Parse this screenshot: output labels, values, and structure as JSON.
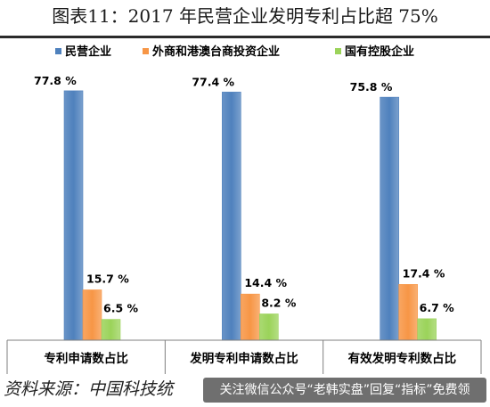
{
  "title": "图表11：2017 年民营企业发明专利占比超 75%",
  "source": "资料来源：中国科技统",
  "watermark": "关注微信公众号“老韩实盘”回复“指标”免费领",
  "colors": {
    "series": [
      "#4f81bd",
      "#f79646",
      "#9bd35a"
    ],
    "axis": "#7f7f7f",
    "text": "#000000"
  },
  "chart_data": {
    "type": "bar",
    "title": "",
    "xlabel": "",
    "ylabel": "",
    "ylim": [
      0,
      80
    ],
    "legend_position": "top",
    "grid": false,
    "categories": [
      "专利申请数占比",
      "发明专利申请数占比",
      "有效发明专利数占比"
    ],
    "series": [
      {
        "name": "民营企业",
        "values": [
          77.8,
          77.4,
          75.8
        ],
        "labels": [
          "77.8 %",
          "77.4 %",
          "75.8 %"
        ]
      },
      {
        "name": "外商和港澳台商投资企业",
        "values": [
          15.7,
          14.4,
          17.4
        ],
        "labels": [
          "15.7 %",
          "14.4 %",
          "17.4 %"
        ]
      },
      {
        "name": "国有控股企业",
        "values": [
          6.5,
          8.2,
          6.7
        ],
        "labels": [
          "6.5 %",
          "8.2 %",
          "6.7 %"
        ]
      }
    ]
  }
}
